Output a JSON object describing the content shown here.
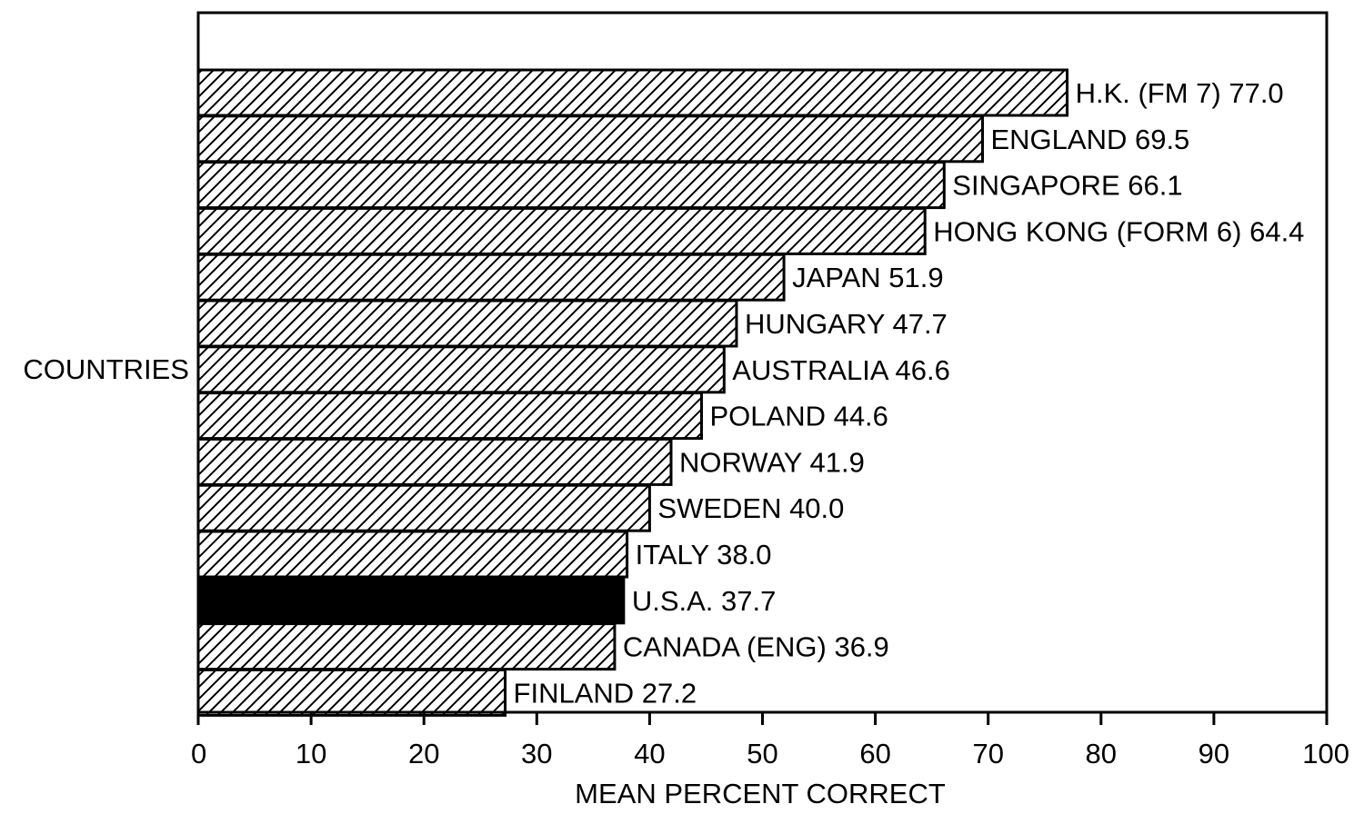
{
  "chart_data": {
    "type": "bar",
    "orientation": "horizontal",
    "title": "",
    "xlabel": "MEAN PERCENT CORRECT",
    "ylabel": "COUNTRIES",
    "xlim": [
      0,
      100
    ],
    "xticks": [
      "0",
      "10",
      "20",
      "30",
      "40",
      "50",
      "60",
      "70",
      "80",
      "90",
      "100"
    ],
    "grid": false,
    "categories": [
      "H.K. (FM 7)",
      "ENGLAND",
      "SINGAPORE",
      "HONG KONG (FORM 6)",
      "JAPAN",
      "HUNGARY",
      "AUSTRALIA",
      "POLAND",
      "NORWAY",
      "SWEDEN",
      "ITALY",
      "U.S.A.",
      "CANADA (ENG)",
      "FINLAND"
    ],
    "values": [
      77.0,
      69.5,
      66.1,
      64.4,
      51.9,
      47.7,
      46.6,
      44.6,
      41.9,
      40.0,
      38.0,
      37.7,
      36.9,
      27.2
    ],
    "labels": [
      "H.K. (FM 7) 77.0",
      "ENGLAND 69.5",
      "SINGAPORE 66.1",
      "HONG KONG (FORM 6) 64.4",
      "JAPAN 51.9",
      "HUNGARY 47.7",
      "AUSTRALIA 46.6",
      "POLAND 44.6",
      "NORWAY 41.9",
      "SWEDEN 40.0",
      "ITALY 38.0",
      "U.S.A. 37.7",
      "CANADA (ENG) 36.9",
      "FINLAND 27.2"
    ],
    "bar_styles": [
      "hatched",
      "hatched",
      "hatched",
      "hatched",
      "hatched",
      "hatched",
      "hatched",
      "hatched",
      "hatched",
      "hatched",
      "hatched",
      "solid",
      "hatched",
      "hatched"
    ],
    "colors": {
      "line": "#000000",
      "background": "#ffffff",
      "solid_bar": "#000000"
    }
  }
}
